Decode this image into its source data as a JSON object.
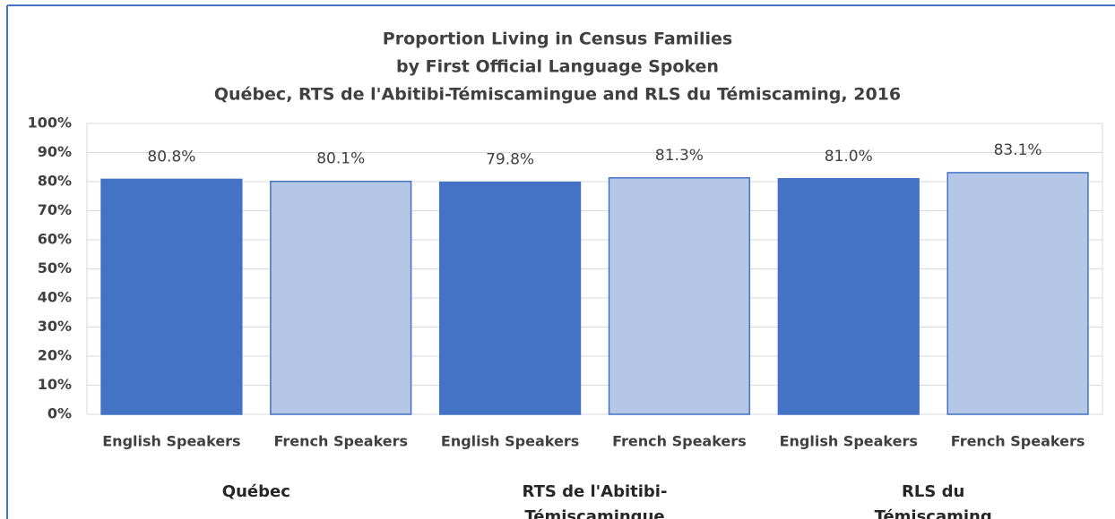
{
  "chart_data": {
    "type": "bar",
    "title": [
      "Proportion Living in Census Families",
      "by First Official Language Spoken",
      "Québec, RTS de l'Abitibi-Témiscamingue and RLS du Témiscaming, 2016"
    ],
    "categories": [
      "English Speakers",
      "French Speakers",
      "English Speakers",
      "French Speakers",
      "English Speakers",
      "French Speakers"
    ],
    "groups": [
      "Québec",
      "RTS de l'Abitibi-Témiscamingue",
      "RLS du Témiscaming"
    ],
    "values": [
      80.8,
      80.1,
      79.8,
      81.3,
      81.0,
      83.1
    ],
    "value_labels": [
      "80.8%",
      "80.1%",
      "79.8%",
      "81.3%",
      "81.0%",
      "83.1%"
    ],
    "colors": [
      "#4472c4",
      "#b4c7e7",
      "#4472c4",
      "#b4c7e7",
      "#4472c4",
      "#b4c7e7"
    ],
    "ylim": [
      0,
      100
    ],
    "yticks": [
      {
        "value": 0,
        "label": "0%"
      },
      {
        "value": 10,
        "label": "10%"
      },
      {
        "value": 20,
        "label": "20%"
      },
      {
        "value": 30,
        "label": "30%"
      },
      {
        "value": 40,
        "label": "40%"
      },
      {
        "value": 50,
        "label": "50%"
      },
      {
        "value": 60,
        "label": "60%"
      },
      {
        "value": 70,
        "label": "70%"
      },
      {
        "value": 80,
        "label": "80%"
      },
      {
        "value": 90,
        "label": "90%"
      },
      {
        "value": 100,
        "label": "100%"
      }
    ],
    "grid": true
  }
}
